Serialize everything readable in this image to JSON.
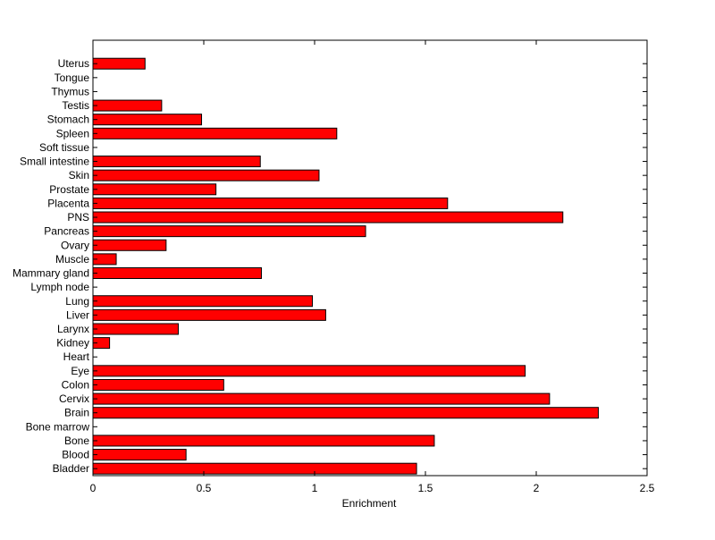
{
  "chart_data": {
    "type": "bar",
    "orientation": "horizontal",
    "title": "",
    "xlabel": "Enrichment",
    "ylabel": "",
    "xlim": [
      0,
      2.5
    ],
    "xticks": [
      0,
      0.5,
      1,
      1.5,
      2,
      2.5
    ],
    "xtick_labels": [
      "0",
      "0.5",
      "1",
      "1.5",
      "2",
      "2.5"
    ],
    "grid": false,
    "bar_color": "#ff0000",
    "bar_edge_color": "#000000",
    "categories": [
      "Bladder",
      "Blood",
      "Bone",
      "Bone marrow",
      "Brain",
      "Cervix",
      "Colon",
      "Eye",
      "Heart",
      "Kidney",
      "Larynx",
      "Liver",
      "Lung",
      "Lymph node",
      "Mammary gland",
      "Muscle",
      "Ovary",
      "Pancreas",
      "PNS",
      "Placenta",
      "Prostate",
      "Skin",
      "Small intestine",
      "Soft tissue",
      "Spleen",
      "Stomach",
      "Testis",
      "Thymus",
      "Tongue",
      "Uterus"
    ],
    "values": [
      1.46,
      0.42,
      1.54,
      0,
      2.28,
      2.06,
      0.59,
      1.95,
      0,
      0.075,
      0.385,
      1.05,
      0.99,
      0,
      0.76,
      0.105,
      0.33,
      1.23,
      2.12,
      1.6,
      0.555,
      1.02,
      0.755,
      0,
      1.1,
      0.49,
      0.31,
      0,
      0,
      0.235
    ]
  }
}
